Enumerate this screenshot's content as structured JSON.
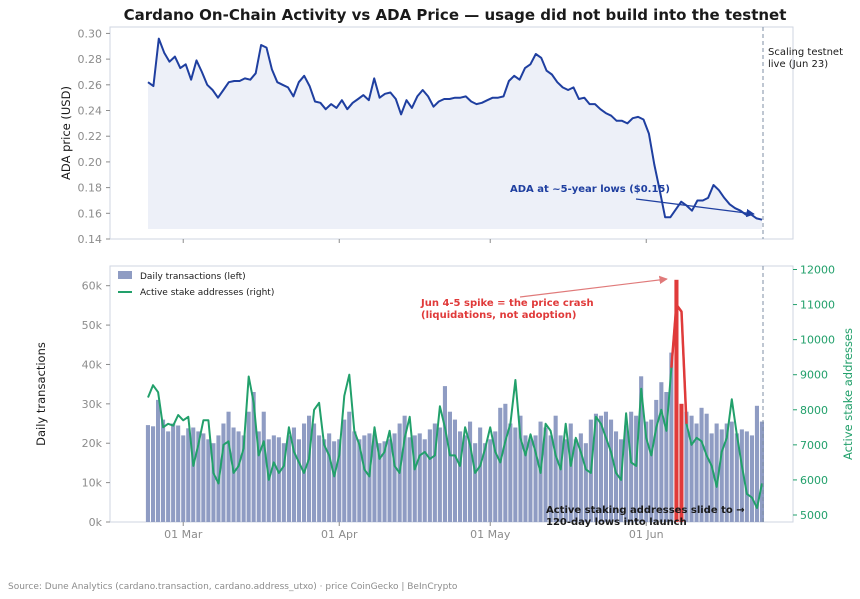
{
  "chart_data": [
    {
      "type": "line",
      "title": "Cardano On-Chain Activity vs ADA Price — usage did not build into the testnet",
      "ylabel": "ADA price (USD)",
      "ylim": [
        0.14,
        0.305
      ],
      "yticks": [
        "0.30",
        "0.28",
        "0.26",
        "0.24",
        "0.22",
        "0.20",
        "0.18",
        "0.16",
        "0.14"
      ],
      "x_dates": {
        "start": "2025-02-22",
        "end": "2025-06-24"
      },
      "series": [
        {
          "color": "#1f3fa0",
          "values": [
            0.262,
            0.259,
            0.296,
            0.285,
            0.278,
            0.282,
            0.273,
            0.276,
            0.264,
            0.279,
            0.27,
            0.26,
            0.256,
            0.25,
            0.256,
            0.262,
            0.263,
            0.263,
            0.265,
            0.264,
            0.269,
            0.291,
            0.289,
            0.272,
            0.262,
            0.26,
            0.258,
            0.251,
            0.262,
            0.267,
            0.259,
            0.247,
            0.246,
            0.241,
            0.245,
            0.242,
            0.248,
            0.241,
            0.246,
            0.249,
            0.252,
            0.248,
            0.265,
            0.25,
            0.253,
            0.254,
            0.249,
            0.237,
            0.248,
            0.242,
            0.251,
            0.256,
            0.251,
            0.243,
            0.247,
            0.249,
            0.249,
            0.25,
            0.25,
            0.251,
            0.247,
            0.245,
            0.246,
            0.248,
            0.25,
            0.25,
            0.251,
            0.263,
            0.267,
            0.264,
            0.273,
            0.276,
            0.284,
            0.281,
            0.271,
            0.268,
            0.262,
            0.258,
            0.256,
            0.258,
            0.249,
            0.25,
            0.245,
            0.245,
            0.241,
            0.238,
            0.236,
            0.232,
            0.232,
            0.23,
            0.234,
            0.235,
            0.233,
            0.222,
            0.198,
            0.178,
            0.157,
            0.157,
            0.163,
            0.169,
            0.166,
            0.162,
            0.17,
            0.17,
            0.172,
            0.182,
            0.178,
            0.172,
            0.167,
            0.164,
            0.162,
            0.159,
            0.159,
            0.156,
            0.155
          ]
        }
      ],
      "annotations": {
        "low": "ADA at ~5-year lows ($0.15)",
        "testnet_line1": "Scaling testnet",
        "testnet_line2": "live (Jun 23)"
      }
    },
    {
      "type": "bar",
      "xticks": [
        "01 Mar",
        "01 Apr",
        "01 May",
        "01 Jun"
      ],
      "ylabel": "Daily transactions",
      "ylim": [
        0,
        65000
      ],
      "yticks": [
        "60k",
        "50k",
        "40k",
        "30k",
        "20k",
        "10k",
        "0k"
      ],
      "y2label": "Active stake addresses",
      "y2lim": [
        4800,
        12100
      ],
      "y2ticks": [
        "12000",
        "11000",
        "10000",
        "9000",
        "8000",
        "7000",
        "6000",
        "5000"
      ],
      "legend": {
        "position": "top-left",
        "bars": "Daily transactions (left)",
        "line": "Active stake addresses (right)"
      },
      "series": [
        {
          "kind": "bar",
          "color": "#8f9cc3",
          "highlight_color": "#e03a3a",
          "values": [
            24600,
            24300,
            31000,
            26000,
            23000,
            25000,
            24500,
            22000,
            23800,
            24000,
            23000,
            22500,
            21000,
            20000,
            22000,
            25000,
            28000,
            24000,
            23000,
            22000,
            28000,
            33000,
            23000,
            28000,
            21000,
            22000,
            21500,
            20000,
            22000,
            24000,
            21000,
            25000,
            27000,
            25000,
            22000,
            21000,
            22500,
            20500,
            21000,
            26000,
            28000,
            23000,
            21000,
            22000,
            22500,
            22000,
            20000,
            20500,
            21000,
            22500,
            25000,
            27000,
            21500,
            22000,
            22500,
            21000,
            23500,
            25000,
            24000,
            34500,
            28000,
            26000,
            23000,
            22000,
            25500,
            20000,
            24000,
            20000,
            21000,
            23000,
            29000,
            30000,
            25000,
            24000,
            27000,
            22000,
            21000,
            22000,
            25500,
            24000,
            22000,
            27000,
            22000,
            21000,
            25000,
            21000,
            22500,
            20000,
            26000,
            27500,
            27000,
            28000,
            26000,
            23000,
            21000,
            24500,
            28000,
            27000,
            37000,
            25500,
            26000,
            31000,
            35500,
            33000,
            43000,
            61500,
            30000,
            28000,
            27000,
            25000,
            29000,
            27500,
            22500,
            25000,
            23500,
            25000,
            25500,
            22500,
            23500,
            23000,
            22000,
            29500,
            25500
          ],
          "highlight_index": [
            105,
            106
          ]
        },
        {
          "kind": "line",
          "color": "#22a06b",
          "values": [
            8350,
            8700,
            8500,
            7500,
            7600,
            7550,
            7850,
            7700,
            7800,
            6400,
            7000,
            7700,
            7700,
            6200,
            5900,
            7000,
            7100,
            6200,
            6400,
            6900,
            8950,
            8200,
            6700,
            7100,
            6000,
            6500,
            6200,
            6400,
            7500,
            6800,
            6500,
            6200,
            6600,
            8000,
            8200,
            7000,
            6700,
            6100,
            6700,
            8400,
            9000,
            7400,
            7000,
            6300,
            6100,
            7500,
            6600,
            6800,
            7400,
            6400,
            6200,
            7200,
            7800,
            6300,
            6700,
            6800,
            6600,
            6700,
            8100,
            7500,
            6700,
            6700,
            6400,
            7500,
            7000,
            6200,
            6400,
            6900,
            7500,
            6800,
            6500,
            7100,
            7600,
            8850,
            7200,
            6700,
            7300,
            6800,
            6200,
            7600,
            7400,
            6700,
            6300,
            7600,
            6400,
            7200,
            6800,
            6300,
            6200,
            7800,
            7600,
            7200,
            6800,
            6200,
            6000,
            7900,
            6500,
            6400,
            8600,
            7200,
            6700,
            7500,
            8000,
            7400,
            9200,
            11000,
            10800,
            7600,
            7000,
            7200,
            7100,
            6700,
            6400,
            5800,
            6800,
            7200,
            8300,
            7300,
            6400,
            5600,
            5500,
            5200,
            5900
          ],
          "highlight_index": [
            105,
            106
          ]
        }
      ],
      "annotations": {
        "spike_line1": "Jun 4-5 spike = the price crash",
        "spike_line2": "(liquidations, not adoption)",
        "staking_line1": "Active staking addresses slide to →",
        "staking_line2": "120-day lows into launch"
      }
    }
  ],
  "source": "Source: Dune Analytics (cardano.transaction, cardano.address_utxo) · price CoinGecko | BeInCrypto"
}
